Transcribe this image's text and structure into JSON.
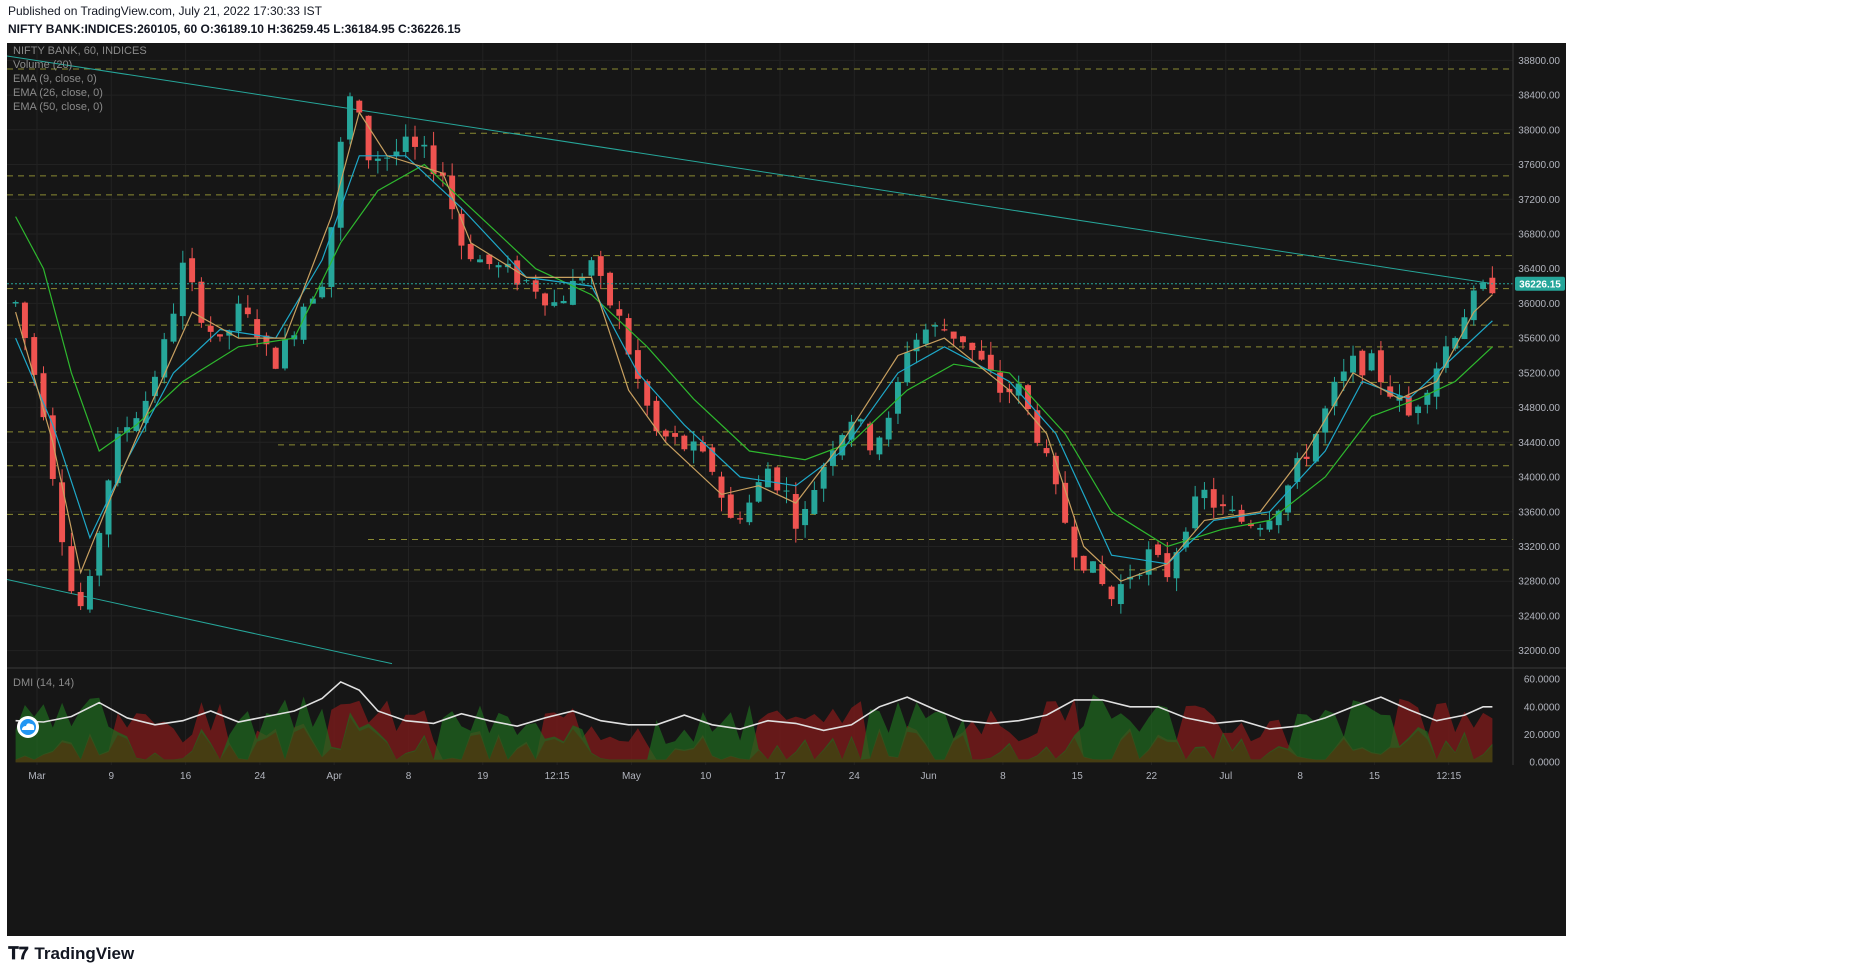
{
  "header": {
    "published": "Published on TradingView.com, July 21, 2022 17:30:33 IST",
    "symbol": "NIFTY BANK:INDICES:260105, 60",
    "ohlc": "O:36189.10 H:36259.45 L:36184.95 C:36226.15"
  },
  "legend": {
    "title": "NIFTY BANK, 60, INDICES",
    "lines": [
      "Volume (20)",
      "EMA (9, close, 0)",
      "EMA (26, close, 0)",
      "EMA (50, close, 0)"
    ],
    "dmi": "DMI (14, 14)"
  },
  "footer": {
    "brand": "TradingView"
  },
  "colors": {
    "background": "#161616",
    "up": "#26a69a",
    "down": "#ef5350",
    "ema9": "#c8a060",
    "ema26": "#1ea8c8",
    "ema50": "#2eb82e",
    "trendline": "#26a69a",
    "level": "#8a8a32",
    "dmi_plus": "#1f6b1f",
    "dmi_minus": "#7a1a1a",
    "adx": "#e0e0e0",
    "price_badge": "#26a69a"
  },
  "chart_data": {
    "type": "candlestick",
    "title": "NIFTY BANK, 60, INDICES",
    "last_price": "36226.15",
    "price_axis": {
      "range": [
        31800,
        39000
      ],
      "ticks": [
        "32000.00",
        "32400.00",
        "32800.00",
        "33200.00",
        "33600.00",
        "34000.00",
        "34400.00",
        "34800.00",
        "35200.00",
        "35600.00",
        "36000.00",
        "36400.00",
        "36800.00",
        "37200.00",
        "37600.00",
        "38000.00",
        "38400.00",
        "38800.00"
      ]
    },
    "dmi_axis": {
      "range": [
        -2,
        68
      ],
      "ticks": [
        "0.0000",
        "20.0000",
        "40.0000",
        "60.0000"
      ]
    },
    "time_axis": {
      "labels": [
        "Mar",
        "9",
        "16",
        "24",
        "Apr",
        "8",
        "19",
        "12:15",
        "May",
        "10",
        "17",
        "24",
        "Jun",
        "8",
        "15",
        "22",
        "Jul",
        "8",
        "15",
        "12:15"
      ]
    },
    "price_path": [
      [
        0,
        36000
      ],
      [
        1.5,
        35400
      ],
      [
        3,
        34800
      ],
      [
        4.5,
        33700
      ],
      [
        6,
        32700
      ],
      [
        7.5,
        32400
      ],
      [
        9,
        33400
      ],
      [
        10.5,
        34300
      ],
      [
        12,
        34600
      ],
      [
        14,
        34900
      ],
      [
        16,
        35500
      ],
      [
        18,
        36400
      ],
      [
        20,
        35900
      ],
      [
        22,
        35500
      ],
      [
        24,
        35900
      ],
      [
        26,
        35700
      ],
      [
        27.5,
        35300
      ],
      [
        29,
        35500
      ],
      [
        31,
        36000
      ],
      [
        33,
        36300
      ],
      [
        34.5,
        37200
      ],
      [
        35.5,
        38400
      ],
      [
        36.5,
        38300
      ],
      [
        38,
        37700
      ],
      [
        40,
        37700
      ],
      [
        42,
        37800
      ],
      [
        44,
        37700
      ],
      [
        46,
        37500
      ],
      [
        48,
        36700
      ],
      [
        50,
        36500
      ],
      [
        52,
        36400
      ],
      [
        54,
        36300
      ],
      [
        56,
        36200
      ],
      [
        58,
        36000
      ],
      [
        60,
        36200
      ],
      [
        62,
        36500
      ],
      [
        63,
        36200
      ],
      [
        65,
        35800
      ],
      [
        67,
        35100
      ],
      [
        69,
        34500
      ],
      [
        71,
        34400
      ],
      [
        73,
        34300
      ],
      [
        75,
        34100
      ],
      [
        77,
        33500
      ],
      [
        79,
        33700
      ],
      [
        81,
        34100
      ],
      [
        83,
        33800
      ],
      [
        84.5,
        33400
      ],
      [
        86,
        33900
      ],
      [
        88,
        34400
      ],
      [
        90,
        34700
      ],
      [
        92,
        34400
      ],
      [
        94,
        34600
      ],
      [
        96,
        35500
      ],
      [
        98,
        35700
      ],
      [
        100,
        35700
      ],
      [
        102,
        35600
      ],
      [
        104,
        35300
      ],
      [
        106,
        35000
      ],
      [
        108,
        35000
      ],
      [
        110,
        34500
      ],
      [
        112,
        33800
      ],
      [
        114,
        33200
      ],
      [
        116,
        32900
      ],
      [
        118,
        32600
      ],
      [
        120,
        32900
      ],
      [
        122,
        33100
      ],
      [
        124,
        32900
      ],
      [
        126,
        33500
      ],
      [
        128,
        33800
      ],
      [
        130,
        33600
      ],
      [
        132,
        33500
      ],
      [
        134,
        33500
      ],
      [
        136,
        33700
      ],
      [
        138,
        34100
      ],
      [
        140,
        34500
      ],
      [
        142,
        35000
      ],
      [
        144,
        35300
      ],
      [
        146,
        35300
      ],
      [
        148,
        35000
      ],
      [
        150,
        34700
      ],
      [
        152,
        35100
      ],
      [
        154,
        35500
      ],
      [
        156,
        35900
      ],
      [
        157.5,
        36100
      ],
      [
        159,
        36226
      ]
    ],
    "ema9": [
      [
        0,
        35900
      ],
      [
        4,
        34400
      ],
      [
        7,
        32900
      ],
      [
        10,
        33700
      ],
      [
        14,
        34700
      ],
      [
        19,
        35900
      ],
      [
        24,
        35600
      ],
      [
        29,
        35600
      ],
      [
        34,
        37000
      ],
      [
        37,
        38200
      ],
      [
        40,
        37700
      ],
      [
        46,
        37500
      ],
      [
        49,
        36700
      ],
      [
        55,
        36300
      ],
      [
        62,
        36300
      ],
      [
        66,
        35000
      ],
      [
        70,
        34400
      ],
      [
        76,
        33800
      ],
      [
        80,
        33900
      ],
      [
        84,
        33700
      ],
      [
        89,
        34400
      ],
      [
        95,
        35400
      ],
      [
        100,
        35600
      ],
      [
        107,
        35000
      ],
      [
        111,
        34500
      ],
      [
        115,
        33200
      ],
      [
        119,
        32800
      ],
      [
        124,
        33000
      ],
      [
        128,
        33500
      ],
      [
        134,
        33600
      ],
      [
        139,
        34300
      ],
      [
        144,
        35200
      ],
      [
        149,
        34900
      ],
      [
        153,
        35100
      ],
      [
        157,
        35900
      ],
      [
        159,
        36100
      ]
    ],
    "ema26": [
      [
        0,
        35600
      ],
      [
        4,
        34600
      ],
      [
        8,
        33300
      ],
      [
        12,
        34200
      ],
      [
        17,
        35200
      ],
      [
        22,
        35700
      ],
      [
        28,
        35600
      ],
      [
        33,
        36500
      ],
      [
        37,
        37700
      ],
      [
        42,
        37700
      ],
      [
        48,
        37100
      ],
      [
        55,
        36300
      ],
      [
        62,
        36200
      ],
      [
        67,
        35200
      ],
      [
        72,
        34600
      ],
      [
        78,
        34000
      ],
      [
        84,
        33900
      ],
      [
        89,
        34300
      ],
      [
        95,
        35200
      ],
      [
        100,
        35500
      ],
      [
        107,
        35100
      ],
      [
        112,
        34500
      ],
      [
        118,
        33100
      ],
      [
        124,
        33000
      ],
      [
        129,
        33500
      ],
      [
        135,
        33600
      ],
      [
        141,
        34300
      ],
      [
        145,
        35100
      ],
      [
        150,
        34900
      ],
      [
        155,
        35400
      ],
      [
        159,
        35800
      ]
    ],
    "ema50": [
      [
        0,
        37000
      ],
      [
        3,
        36400
      ],
      [
        6,
        35200
      ],
      [
        9,
        34300
      ],
      [
        13,
        34600
      ],
      [
        18,
        35100
      ],
      [
        24,
        35500
      ],
      [
        30,
        35600
      ],
      [
        35,
        36700
      ],
      [
        39,
        37300
      ],
      [
        44,
        37600
      ],
      [
        50,
        37000
      ],
      [
        56,
        36400
      ],
      [
        62,
        36100
      ],
      [
        68,
        35500
      ],
      [
        73,
        34900
      ],
      [
        79,
        34300
      ],
      [
        85,
        34200
      ],
      [
        90,
        34400
      ],
      [
        96,
        35000
      ],
      [
        101,
        35300
      ],
      [
        107,
        35200
      ],
      [
        113,
        34500
      ],
      [
        118,
        33600
      ],
      [
        124,
        33200
      ],
      [
        130,
        33400
      ],
      [
        135,
        33500
      ],
      [
        141,
        34000
      ],
      [
        146,
        34700
      ],
      [
        151,
        34900
      ],
      [
        155,
        35100
      ],
      [
        159,
        35500
      ]
    ],
    "adx": [
      [
        0,
        30
      ],
      [
        3,
        29
      ],
      [
        6,
        33
      ],
      [
        9,
        43
      ],
      [
        12,
        32
      ],
      [
        15,
        27
      ],
      [
        18,
        30
      ],
      [
        21,
        37
      ],
      [
        24,
        29
      ],
      [
        27,
        33
      ],
      [
        30,
        37
      ],
      [
        33,
        46
      ],
      [
        35,
        58
      ],
      [
        37,
        52
      ],
      [
        39,
        37
      ],
      [
        42,
        30
      ],
      [
        45,
        28
      ],
      [
        48,
        35
      ],
      [
        51,
        30
      ],
      [
        54,
        26
      ],
      [
        57,
        32
      ],
      [
        60,
        37
      ],
      [
        63,
        30
      ],
      [
        66,
        27
      ],
      [
        69,
        27
      ],
      [
        72,
        34
      ],
      [
        75,
        27
      ],
      [
        78,
        24
      ],
      [
        81,
        30
      ],
      [
        84,
        28
      ],
      [
        87,
        23
      ],
      [
        90,
        27
      ],
      [
        93,
        40
      ],
      [
        96,
        47
      ],
      [
        99,
        38
      ],
      [
        102,
        30
      ],
      [
        105,
        28
      ],
      [
        108,
        30
      ],
      [
        111,
        34
      ],
      [
        114,
        45
      ],
      [
        117,
        45
      ],
      [
        120,
        40
      ],
      [
        123,
        40
      ],
      [
        126,
        32
      ],
      [
        129,
        28
      ],
      [
        132,
        30
      ],
      [
        135,
        24
      ],
      [
        138,
        26
      ],
      [
        141,
        32
      ],
      [
        144,
        40
      ],
      [
        147,
        47
      ],
      [
        150,
        38
      ],
      [
        153,
        30
      ],
      [
        156,
        34
      ],
      [
        158,
        40
      ],
      [
        159,
        40
      ]
    ],
    "levels": [
      38700,
      37960,
      37470,
      37250,
      36550,
      36170,
      35750,
      35500,
      35090,
      34520,
      34370,
      34130,
      33570,
      33280,
      32930
    ]
  }
}
